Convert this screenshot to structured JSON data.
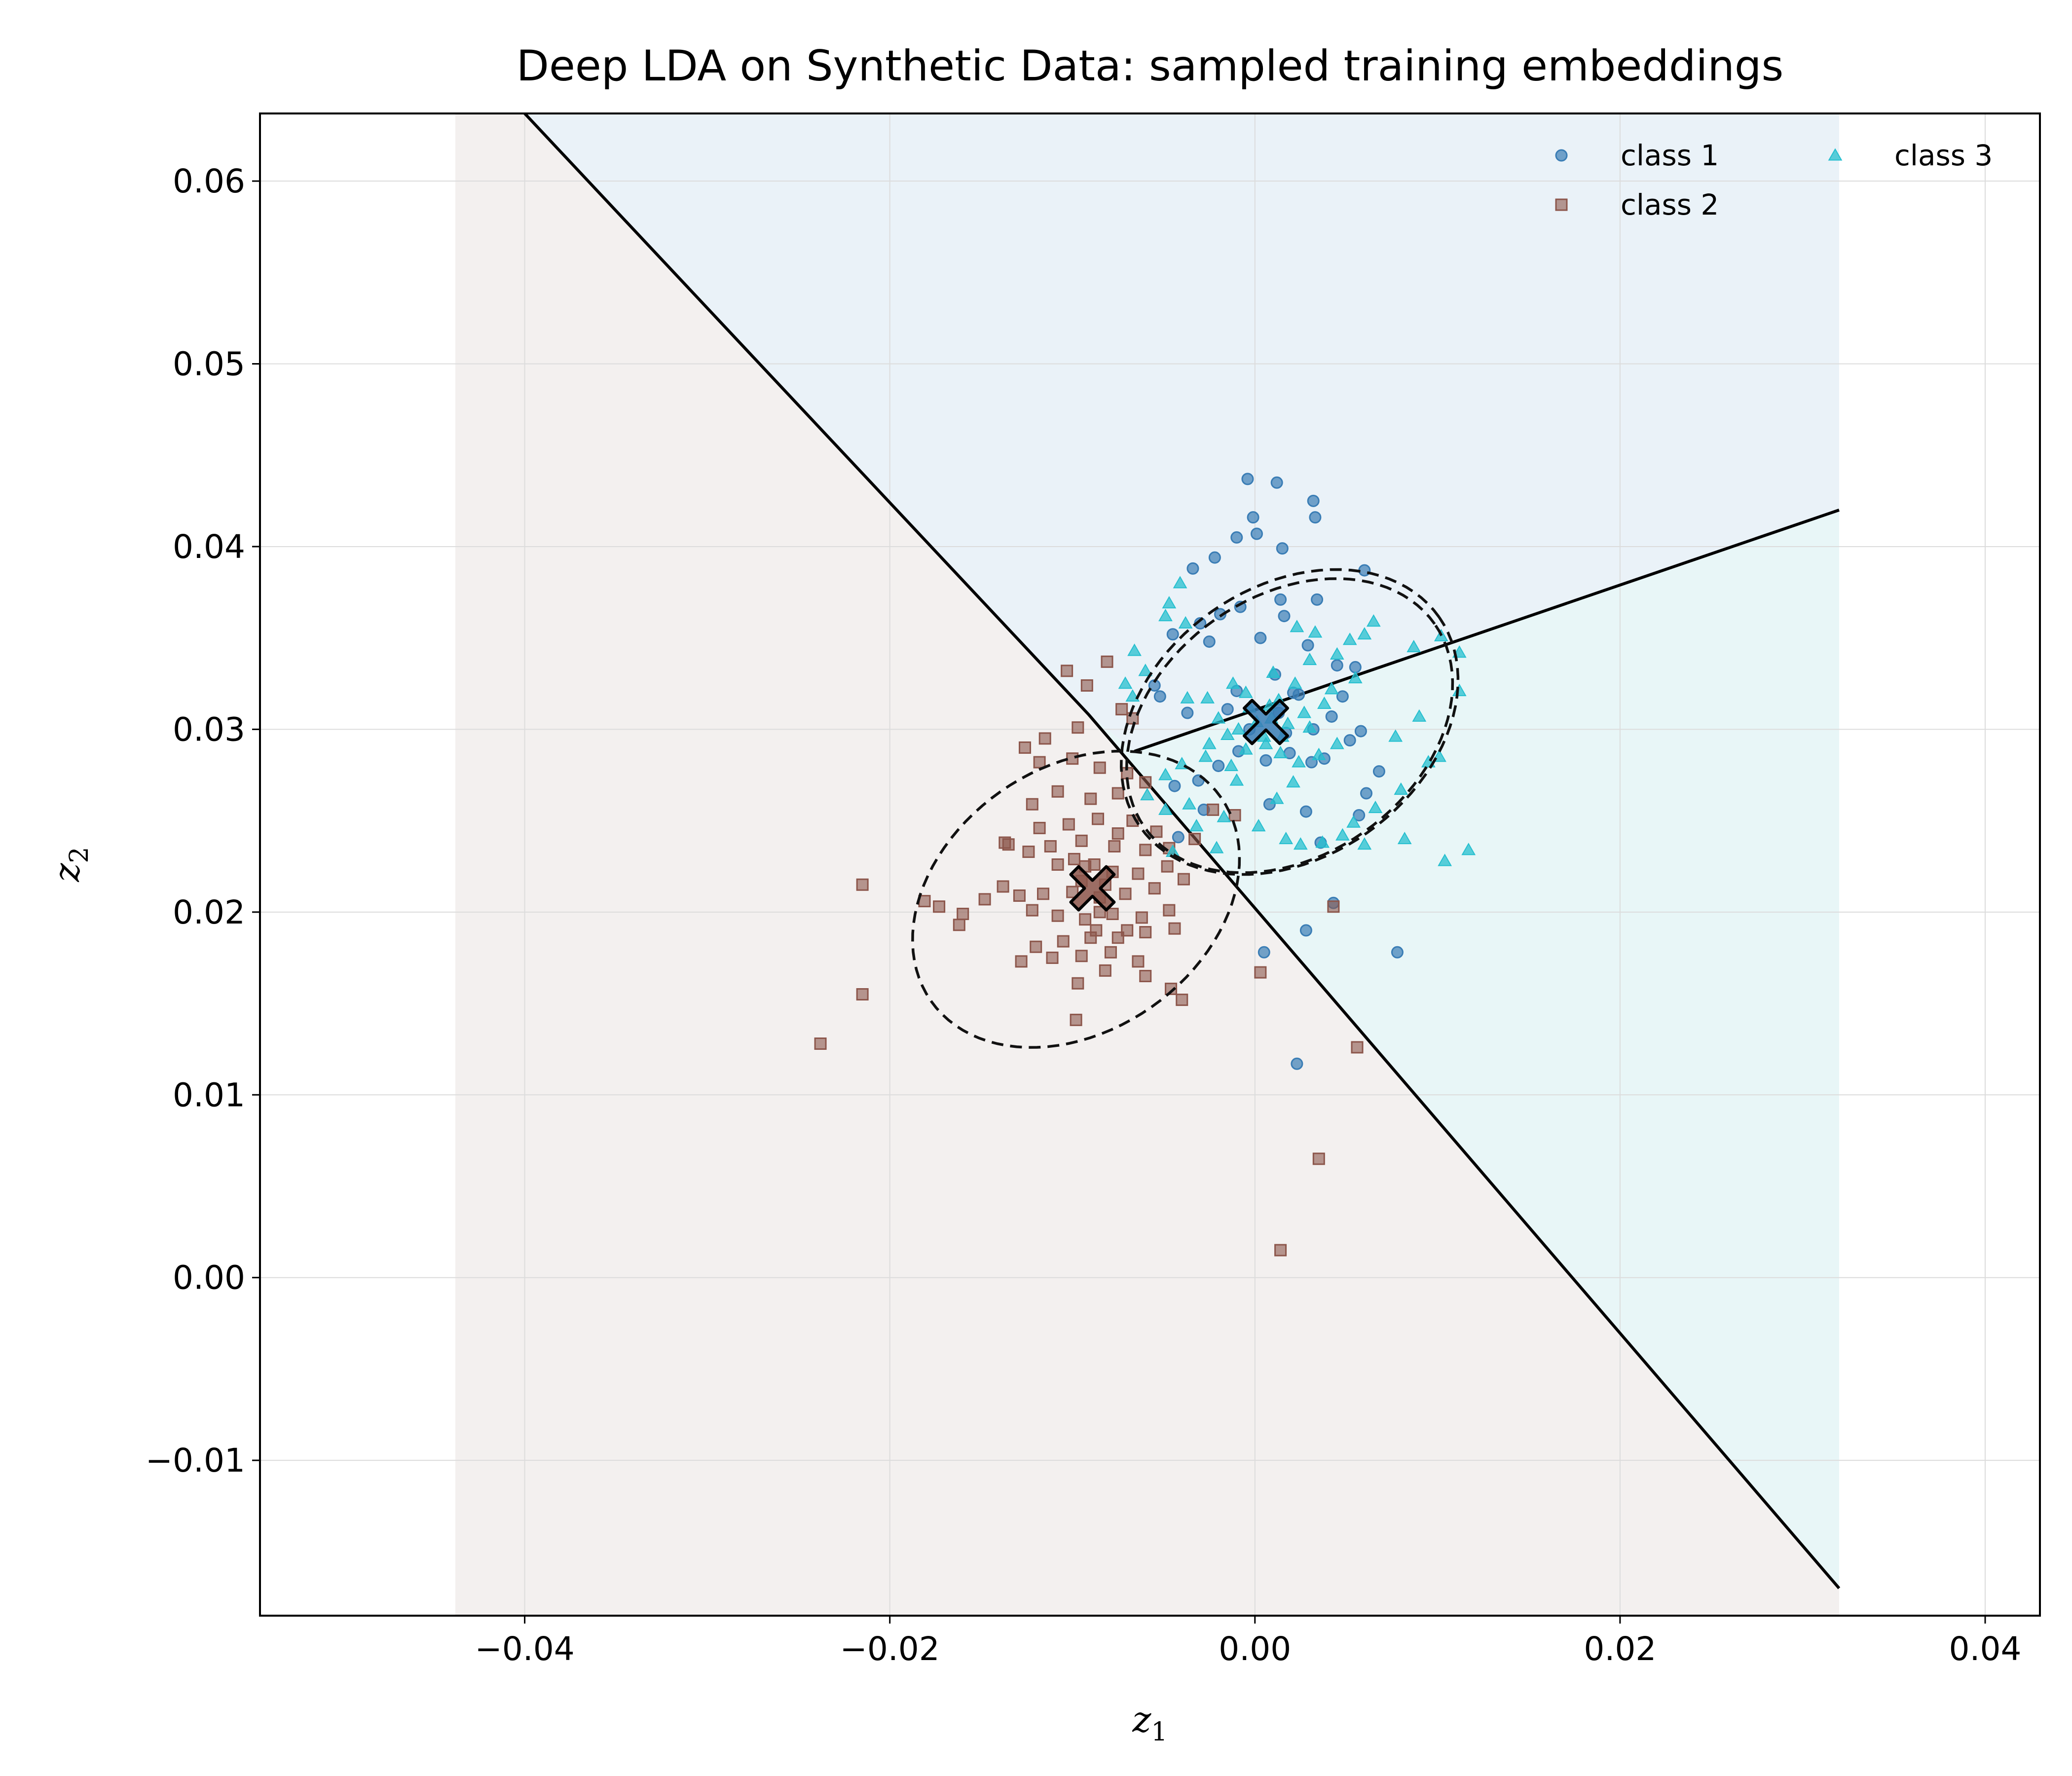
{
  "chart_data": {
    "type": "scatter",
    "title": "Deep LDA on Synthetic Data: sampled training embeddings",
    "xlabel": "z",
    "xlabel_sub": "1",
    "ylabel": "z",
    "ylabel_sub": "2",
    "xlim": [
      -0.0545,
      0.043
    ],
    "ylim": [
      -0.0185,
      0.0637
    ],
    "xticks": [
      -0.04,
      -0.02,
      0.0,
      0.02,
      0.04
    ],
    "xtick_labels": [
      "−0.04",
      "−0.02",
      "0.00",
      "0.02",
      "0.04"
    ],
    "yticks": [
      -0.01,
      0.0,
      0.01,
      0.02,
      0.03,
      0.04,
      0.05,
      0.06
    ],
    "ytick_labels": [
      "−0.01",
      "0.00",
      "0.01",
      "0.02",
      "0.03",
      "0.04",
      "0.05",
      "0.06"
    ],
    "grid": true,
    "legend_position": "top-right",
    "region_xlim": [
      -0.0438,
      0.032
    ],
    "decision_boundaries": [
      {
        "name": "class-1-vs-class-2",
        "points": [
          [
            -0.04,
            0.0637
          ],
          [
            -0.0091,
            0.0308
          ],
          [
            0.032,
            -0.017
          ]
        ]
      },
      {
        "name": "class-1-vs-class-3",
        "points": [
          [
            -0.0066,
            0.0288
          ],
          [
            0.032,
            0.042
          ]
        ]
      }
    ],
    "series": [
      {
        "name": "class 1",
        "marker": "circle",
        "color": "#3a7db5",
        "region_color": "#eaf2f8",
        "mean": [
          0.0006,
          0.0304
        ],
        "ellipse": {
          "cx": 0.0019,
          "cy": 0.0304,
          "rx": 0.01,
          "ry": 0.0074,
          "angle_deg": 35
        },
        "points": [
          [
            -0.0004,
            0.0437
          ],
          [
            0.0012,
            0.0435
          ],
          [
            0.0032,
            0.0425
          ],
          [
            0.0033,
            0.0416
          ],
          [
            -0.0001,
            0.0416
          ],
          [
            -0.001,
            0.0405
          ],
          [
            0.0001,
            0.0407
          ],
          [
            0.0015,
            0.0399
          ],
          [
            -0.0022,
            0.0394
          ],
          [
            -0.0034,
            0.0388
          ],
          [
            0.0014,
            0.0371
          ],
          [
            0.0016,
            0.0362
          ],
          [
            -0.0008,
            0.0367
          ],
          [
            -0.0019,
            0.0363
          ],
          [
            -0.003,
            0.0358
          ],
          [
            -0.0045,
            0.0352
          ],
          [
            -0.0025,
            0.0348
          ],
          [
            0.0003,
            0.035
          ],
          [
            0.0029,
            0.0346
          ],
          [
            0.0045,
            0.0335
          ],
          [
            -0.0055,
            0.0324
          ],
          [
            -0.0052,
            0.0318
          ],
          [
            -0.0037,
            0.0309
          ],
          [
            -0.001,
            0.0321
          ],
          [
            0.0011,
            0.033
          ],
          [
            0.0024,
            0.0319
          ],
          [
            0.0042,
            0.0307
          ],
          [
            0.0058,
            0.0299
          ],
          [
            0.0052,
            0.0294
          ],
          [
            0.0038,
            0.0284
          ],
          [
            0.0031,
            0.0282
          ],
          [
            0.0019,
            0.0287
          ],
          [
            0.0006,
            0.0283
          ],
          [
            -0.0009,
            0.0288
          ],
          [
            -0.002,
            0.028
          ],
          [
            -0.0031,
            0.0272
          ],
          [
            -0.0044,
            0.0269
          ],
          [
            -0.0028,
            0.0256
          ],
          [
            -0.0042,
            0.0241
          ],
          [
            0.0008,
            0.0259
          ],
          [
            0.0028,
            0.0255
          ],
          [
            0.0036,
            0.0238
          ],
          [
            0.0061,
            0.0265
          ],
          [
            0.0068,
            0.0277
          ],
          [
            0.0057,
            0.0253
          ],
          [
            0.0043,
            0.0205
          ],
          [
            0.0028,
            0.019
          ],
          [
            0.0005,
            0.0178
          ],
          [
            0.0078,
            0.0178
          ],
          [
            0.0023,
            0.0117
          ],
          [
            0.006,
            0.0387
          ],
          [
            0.0034,
            0.0371
          ],
          [
            0.0055,
            0.0334
          ],
          [
            0.0013,
            0.0309
          ],
          [
            -0.0003,
            0.03
          ],
          [
            0.0017,
            0.0298
          ],
          [
            0.0032,
            0.03
          ],
          [
            -0.0015,
            0.0311
          ],
          [
            0.0021,
            0.032
          ],
          [
            0.0048,
            0.0318
          ]
        ]
      },
      {
        "name": "class 2",
        "marker": "square",
        "color": "#8c564b",
        "region_color": "#f3f0ef",
        "mean": [
          -0.0089,
          0.0213
        ],
        "ellipse": {
          "cx": -0.0098,
          "cy": 0.0207,
          "rx": 0.0097,
          "ry": 0.0072,
          "angle_deg": 35
        },
        "points": [
          [
            -0.0103,
            0.0332
          ],
          [
            -0.0081,
            0.0337
          ],
          [
            -0.0092,
            0.0324
          ],
          [
            -0.0073,
            0.0311
          ],
          [
            -0.0067,
            0.0306
          ],
          [
            -0.0097,
            0.0301
          ],
          [
            -0.0115,
            0.0295
          ],
          [
            -0.0126,
            0.029
          ],
          [
            -0.0118,
            0.0282
          ],
          [
            -0.01,
            0.0284
          ],
          [
            -0.0085,
            0.0279
          ],
          [
            -0.007,
            0.0276
          ],
          [
            -0.006,
            0.0271
          ],
          [
            -0.0075,
            0.0265
          ],
          [
            -0.009,
            0.0262
          ],
          [
            -0.0108,
            0.0266
          ],
          [
            -0.0122,
            0.0259
          ],
          [
            -0.0118,
            0.0246
          ],
          [
            -0.0102,
            0.0248
          ],
          [
            -0.0086,
            0.0251
          ],
          [
            -0.0067,
            0.025
          ],
          [
            -0.0054,
            0.0244
          ],
          [
            -0.006,
            0.0234
          ],
          [
            -0.0077,
            0.0236
          ],
          [
            -0.0095,
            0.0239
          ],
          [
            -0.0112,
            0.0236
          ],
          [
            -0.0124,
            0.0233
          ],
          [
            -0.0108,
            0.0226
          ],
          [
            -0.0093,
            0.0225
          ],
          [
            -0.0078,
            0.0222
          ],
          [
            -0.0064,
            0.0221
          ],
          [
            -0.0048,
            0.0225
          ],
          [
            -0.0039,
            0.0218
          ],
          [
            -0.0055,
            0.0213
          ],
          [
            -0.0071,
            0.021
          ],
          [
            -0.0085,
            0.0208
          ],
          [
            -0.01,
            0.0211
          ],
          [
            -0.0116,
            0.021
          ],
          [
            -0.0129,
            0.0209
          ],
          [
            -0.0138,
            0.0214
          ],
          [
            -0.0122,
            0.0201
          ],
          [
            -0.0108,
            0.0198
          ],
          [
            -0.0093,
            0.0196
          ],
          [
            -0.0078,
            0.0199
          ],
          [
            -0.0062,
            0.0197
          ],
          [
            -0.0047,
            0.0201
          ],
          [
            -0.0044,
            0.0191
          ],
          [
            -0.006,
            0.0189
          ],
          [
            -0.0075,
            0.0186
          ],
          [
            -0.009,
            0.0186
          ],
          [
            -0.0105,
            0.0184
          ],
          [
            -0.012,
            0.0181
          ],
          [
            -0.0128,
            0.0173
          ],
          [
            -0.0111,
            0.0175
          ],
          [
            -0.0095,
            0.0176
          ],
          [
            -0.0079,
            0.0178
          ],
          [
            -0.0064,
            0.0173
          ],
          [
            -0.006,
            0.0165
          ],
          [
            -0.0082,
            0.0168
          ],
          [
            -0.0097,
            0.0161
          ],
          [
            -0.0098,
            0.0141
          ],
          [
            -0.0046,
            0.0158
          ],
          [
            -0.004,
            0.0152
          ],
          [
            -0.0215,
            0.0215
          ],
          [
            -0.0181,
            0.0206
          ],
          [
            -0.0173,
            0.0203
          ],
          [
            -0.016,
            0.0199
          ],
          [
            -0.0162,
            0.0193
          ],
          [
            -0.0148,
            0.0207
          ],
          [
            -0.0215,
            0.0155
          ],
          [
            -0.0238,
            0.0128
          ],
          [
            -0.0135,
            0.0237
          ],
          [
            -0.0137,
            0.0238
          ],
          [
            -0.0047,
            0.0235
          ],
          [
            -0.0023,
            0.0256
          ],
          [
            -0.0033,
            0.024
          ],
          [
            -0.0011,
            0.0253
          ],
          [
            0.0003,
            0.0167
          ],
          [
            0.0043,
            0.0203
          ],
          [
            0.0056,
            0.0126
          ],
          [
            0.0035,
            0.0065
          ],
          [
            0.0014,
            0.0015
          ],
          [
            -0.0088,
            0.0226
          ],
          [
            -0.0085,
            0.02
          ],
          [
            -0.0095,
            0.0217
          ],
          [
            -0.0082,
            0.0215
          ],
          [
            -0.0087,
            0.019
          ],
          [
            -0.0075,
            0.0243
          ],
          [
            -0.0099,
            0.0229
          ],
          [
            -0.007,
            0.019
          ]
        ]
      },
      {
        "name": "class 3",
        "marker": "triangle",
        "color": "#25bfcf",
        "region_color": "#e8f6f7",
        "mean": [
          0.0006,
          0.0304
        ],
        "ellipse": {
          "cx": 0.0019,
          "cy": 0.0302,
          "rx": 0.0097,
          "ry": 0.0071,
          "angle_deg": 35
        },
        "points": [
          [
            -0.0041,
            0.038
          ],
          [
            -0.0047,
            0.0369
          ],
          [
            -0.0049,
            0.0362
          ],
          [
            -0.0038,
            0.0358
          ],
          [
            0.0023,
            0.0356
          ],
          [
            0.0033,
            0.0353
          ],
          [
            -0.0066,
            0.0343
          ],
          [
            -0.006,
            0.0332
          ],
          [
            -0.0071,
            0.0325
          ],
          [
            -0.0067,
            0.0318
          ],
          [
            -0.0037,
            0.0317
          ],
          [
            -0.0026,
            0.0317
          ],
          [
            -0.0012,
            0.0325
          ],
          [
            0.001,
            0.0331
          ],
          [
            0.003,
            0.0338
          ],
          [
            0.0045,
            0.0341
          ],
          [
            0.0052,
            0.0349
          ],
          [
            0.006,
            0.0352
          ],
          [
            0.0065,
            0.0359
          ],
          [
            0.0087,
            0.0345
          ],
          [
            0.0102,
            0.0351
          ],
          [
            0.0112,
            0.0342
          ],
          [
            0.0112,
            0.0321
          ],
          [
            0.009,
            0.0307
          ],
          [
            0.0077,
            0.0296
          ],
          [
            0.0095,
            0.0282
          ],
          [
            0.0101,
            0.0285
          ],
          [
            0.008,
            0.0267
          ],
          [
            0.0066,
            0.0257
          ],
          [
            0.0054,
            0.0249
          ],
          [
            0.006,
            0.0237
          ],
          [
            0.0082,
            0.024
          ],
          [
            0.0104,
            0.0228
          ],
          [
            0.0117,
            0.0234
          ],
          [
            0.0048,
            0.0242
          ],
          [
            0.0037,
            0.0238
          ],
          [
            0.0025,
            0.0237
          ],
          [
            0.0017,
            0.024
          ],
          [
            0.0002,
            0.0247
          ],
          [
            -0.0017,
            0.0252
          ],
          [
            -0.0036,
            0.0259
          ],
          [
            -0.0049,
            0.0256
          ],
          [
            -0.0059,
            0.0264
          ],
          [
            -0.0049,
            0.0275
          ],
          [
            -0.004,
            0.0281
          ],
          [
            -0.0027,
            0.0285
          ],
          [
            -0.0013,
            0.028
          ],
          [
            -0.0005,
            0.0289
          ],
          [
            0.0006,
            0.0292
          ],
          [
            0.0014,
            0.0287
          ],
          [
            0.0024,
            0.0282
          ],
          [
            0.0035,
            0.0286
          ],
          [
            0.0045,
            0.0292
          ],
          [
            -0.0021,
            0.0235
          ],
          [
            -0.0045,
            0.0233
          ],
          [
            -0.0032,
            0.0247
          ],
          [
            -0.001,
            0.0272
          ],
          [
            0.0012,
            0.0262
          ],
          [
            0.0021,
            0.0271
          ],
          [
            -0.0009,
            0.03
          ],
          [
            0.0001,
            0.0304
          ],
          [
            0.0009,
            0.0306
          ],
          [
            0.0018,
            0.0303
          ],
          [
            -0.0015,
            0.0297
          ],
          [
            -0.0003,
            0.0312
          ],
          [
            0.0013,
            0.0316
          ],
          [
            0.0027,
            0.0309
          ],
          [
            0.0005,
            0.0296
          ],
          [
            -0.002,
            0.0306
          ],
          [
            0.0038,
            0.0314
          ],
          [
            -0.0025,
            0.0292
          ],
          [
            0.0015,
            0.0296
          ],
          [
            0.003,
            0.0301
          ],
          [
            -0.0005,
            0.032
          ],
          [
            0.0008,
            0.0313
          ],
          [
            0.0022,
            0.0325
          ],
          [
            0.0042,
            0.0322
          ],
          [
            0.0055,
            0.0328
          ]
        ]
      }
    ]
  }
}
